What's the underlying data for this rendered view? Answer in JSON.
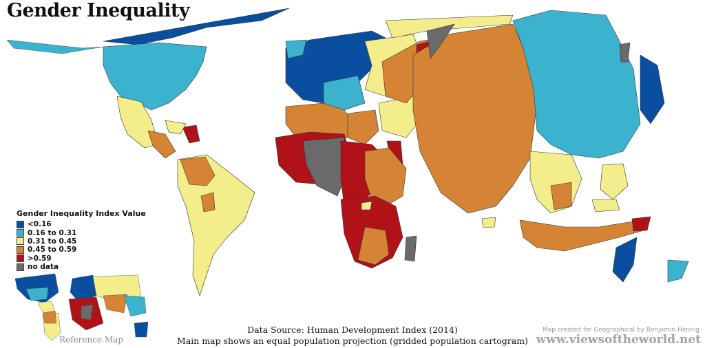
{
  "title": "Gender Inequality",
  "legend": {
    "title": "Gender Inequality Index Value",
    "items": [
      {
        "label": "<0.16",
        "color": "#0a4ea0"
      },
      {
        "label": "0.16 to 0.31",
        "color": "#3bb3cf"
      },
      {
        "label": "0.31 to 0.45",
        "color": "#f3ee8b"
      },
      {
        "label": "0.45 to 0.59",
        "color": "#d48434"
      },
      {
        "label": ">0.59",
        "color": "#b01217"
      },
      {
        "label": "no data",
        "color": "#6a6a6a"
      }
    ]
  },
  "reference_map_caption": "Reference Map",
  "source_line_1": "Data Source: Human Development Index (2014)",
  "source_line_2": "Main map shows an equal population projection (gridded population cartogram)",
  "credit": "Map created for Geographical by Benjamin Hennig",
  "website": "www.viewsoftheworld.net"
}
